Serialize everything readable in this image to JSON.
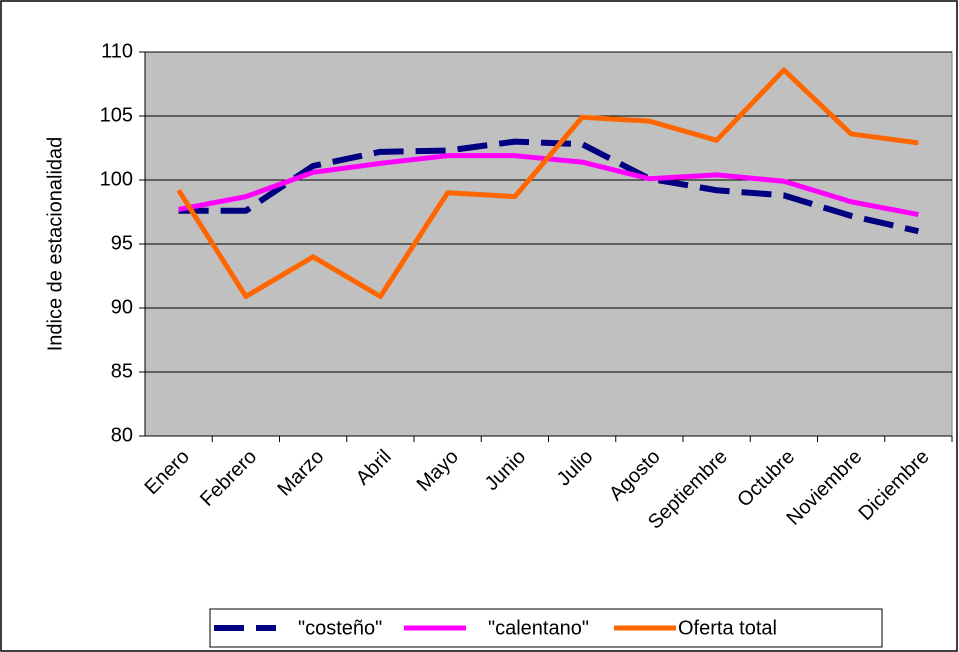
{
  "chart_data": {
    "type": "line",
    "y_label": "Indice de estacionalidad",
    "categories": [
      "Enero",
      "Febrero",
      "Marzo",
      "Abril",
      "Mayo",
      "Junio",
      "Julio",
      "Agosto",
      "Septiembre",
      "Octubre",
      "Noviembre",
      "Diciembre"
    ],
    "series": [
      {
        "name": "\"costeño\"",
        "color": "#000080",
        "dashed": true,
        "values": [
          97.6,
          97.6,
          101.1,
          102.2,
          102.3,
          103.0,
          102.8,
          100.1,
          99.2,
          98.8,
          97.2,
          96.0
        ]
      },
      {
        "name": "\"calentano\"",
        "color": "#FF00FF",
        "dashed": false,
        "values": [
          97.7,
          98.7,
          100.6,
          101.3,
          101.9,
          101.9,
          101.4,
          100.1,
          100.4,
          99.9,
          98.3,
          97.3
        ]
      },
      {
        "name": "Oferta total",
        "color": "#FF6600",
        "dashed": false,
        "values": [
          99.2,
          90.9,
          94.0,
          90.9,
          99.0,
          98.7,
          104.9,
          104.6,
          103.1,
          108.6,
          103.6,
          102.9
        ]
      }
    ],
    "ylim": [
      80,
      110
    ],
    "yticks": [
      80,
      85,
      90,
      95,
      100,
      105,
      110
    ],
    "grid": true,
    "legend": "bottom"
  }
}
